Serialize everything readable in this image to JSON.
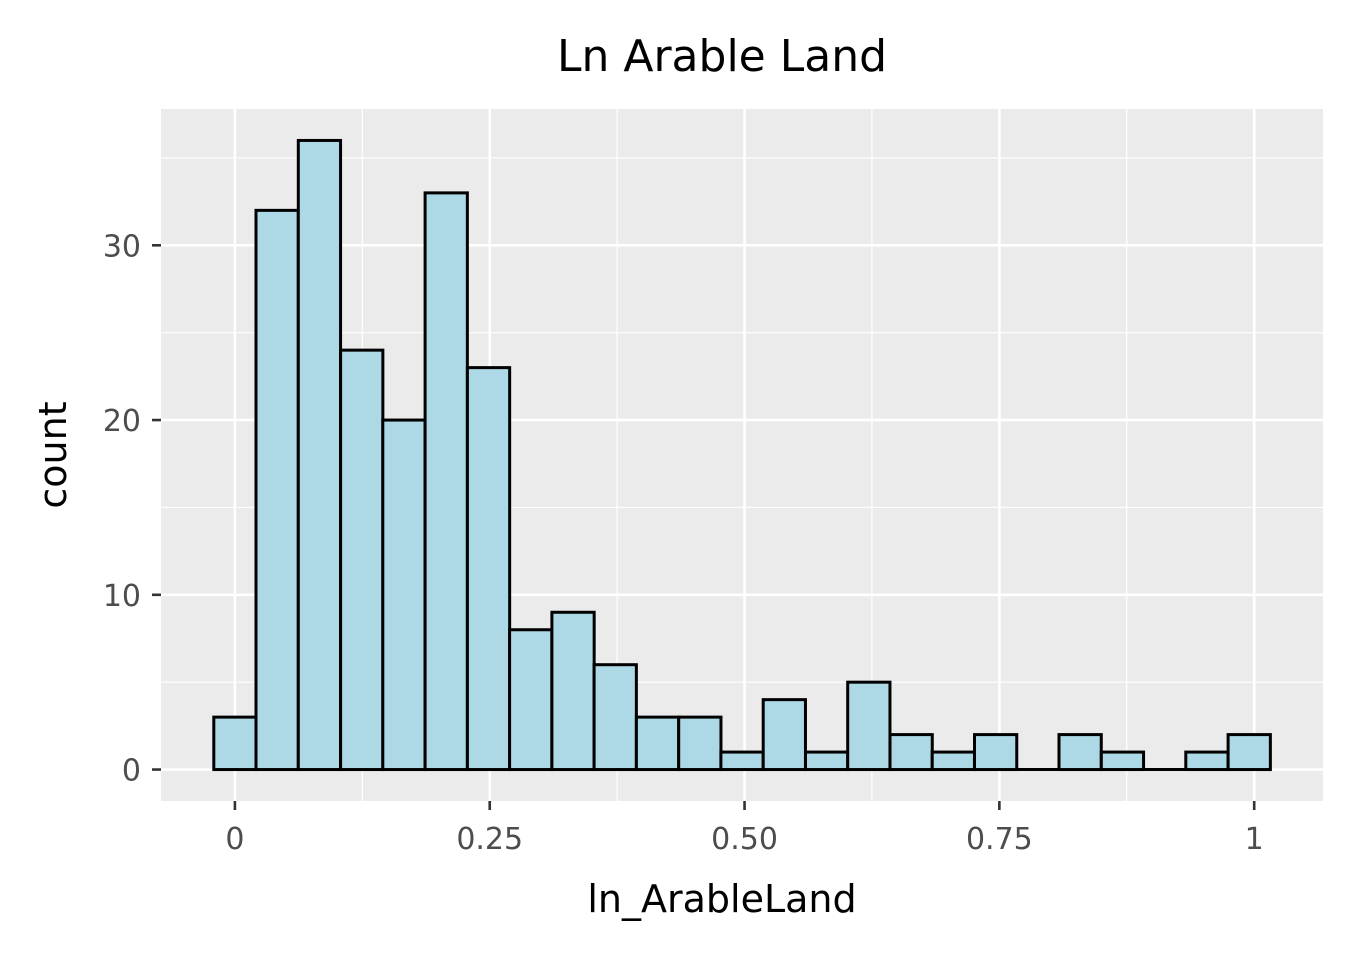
{
  "chart_data": {
    "type": "bar",
    "title": "Ln Arable Land",
    "xlabel": "ln_ArableLand",
    "ylabel": "count",
    "xlim": [
      -0.0725,
      1.0675
    ],
    "ylim": [
      -1.8,
      37.8
    ],
    "x_ticks": [
      {
        "value": 0,
        "label": "0"
      },
      {
        "value": 0.25,
        "label": "0.25"
      },
      {
        "value": 0.5,
        "label": "0.50"
      },
      {
        "value": 0.75,
        "label": "0.75"
      },
      {
        "value": 1,
        "label": "1"
      }
    ],
    "y_ticks": [
      {
        "value": 0,
        "label": "0"
      },
      {
        "value": 10,
        "label": "10"
      },
      {
        "value": 20,
        "label": "20"
      },
      {
        "value": 30,
        "label": "30"
      }
    ],
    "bin_width": 0.04146,
    "bins": [
      {
        "x_min": -0.0207,
        "count": 3
      },
      {
        "x_min": 0.0207,
        "count": 32
      },
      {
        "x_min": 0.0622,
        "count": 36
      },
      {
        "x_min": 0.1037,
        "count": 24
      },
      {
        "x_min": 0.1451,
        "count": 20
      },
      {
        "x_min": 0.1866,
        "count": 33
      },
      {
        "x_min": 0.2281,
        "count": 23
      },
      {
        "x_min": 0.2695,
        "count": 8
      },
      {
        "x_min": 0.311,
        "count": 9
      },
      {
        "x_min": 0.3524,
        "count": 6
      },
      {
        "x_min": 0.3939,
        "count": 3
      },
      {
        "x_min": 0.4354,
        "count": 3
      },
      {
        "x_min": 0.4768,
        "count": 1
      },
      {
        "x_min": 0.5183,
        "count": 4
      },
      {
        "x_min": 0.5598,
        "count": 1
      },
      {
        "x_min": 0.6012,
        "count": 5
      },
      {
        "x_min": 0.6427,
        "count": 2
      },
      {
        "x_min": 0.6841,
        "count": 1
      },
      {
        "x_min": 0.7256,
        "count": 2
      },
      {
        "x_min": 0.7671,
        "count": 0
      },
      {
        "x_min": 0.8085,
        "count": 2
      },
      {
        "x_min": 0.85,
        "count": 1
      },
      {
        "x_min": 0.8915,
        "count": 0
      },
      {
        "x_min": 0.9329,
        "count": 1
      },
      {
        "x_min": 0.9744,
        "count": 2
      }
    ],
    "colors": {
      "bar_fill": "#add8e6",
      "bar_stroke": "#000000",
      "panel_background": "#ebebeb",
      "grid": "#ffffff"
    },
    "grid": true,
    "legend": "none"
  }
}
